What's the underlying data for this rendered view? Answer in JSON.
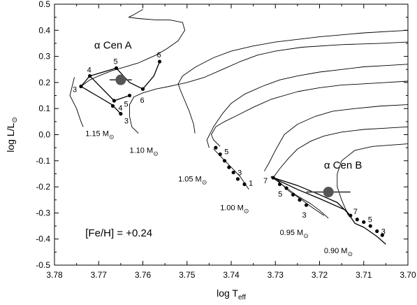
{
  "chart_data": {
    "type": "line",
    "xlabel": "log T",
    "xlabel_sub": "eff",
    "ylabel": "log L/L",
    "ylabel_sub": "⊙",
    "xlim": [
      3.78,
      3.7
    ],
    "ylim": [
      -0.5,
      0.5
    ],
    "x_reversed": true,
    "grid": false,
    "x_ticks": [
      "3.78",
      "3.77",
      "3.76",
      "3.75",
      "3.74",
      "3.73",
      "3.72",
      "3.71",
      "3.70"
    ],
    "y_ticks": [
      "0.5",
      "0.4",
      "0.3",
      "0.2",
      "0.1",
      "0.0",
      "-0.1",
      "-0.2",
      "-0.3",
      "-0.4",
      "-0.5"
    ],
    "annotations": [
      {
        "text": "α Cen A",
        "x": 3.771,
        "y": 0.33
      },
      {
        "text": "α Cen B",
        "x": 3.719,
        "y": -0.13
      },
      {
        "text": "[Fe/H] = +0.24",
        "x": 3.773,
        "y": -0.39
      }
    ],
    "track_labels": [
      {
        "mass": "1.15 M",
        "x": 3.773,
        "y": -0.005
      },
      {
        "mass": "1.10 M",
        "x": 3.763,
        "y": -0.07
      },
      {
        "mass": "1.05 M",
        "x": 3.752,
        "y": -0.18
      },
      {
        "mass": "1.00 M",
        "x": 3.7425,
        "y": -0.29
      },
      {
        "mass": "0.95 M",
        "x": 3.729,
        "y": -0.385
      },
      {
        "mass": "0.90 M",
        "x": 3.719,
        "y": -0.455
      }
    ],
    "mass_sun_symbol": "⊙",
    "series": [
      {
        "points": [
          [
            3.7755,
            0.22
          ],
          [
            3.7765,
            0.15
          ],
          [
            3.775,
            0.1
          ],
          [
            3.774,
            0.05
          ],
          [
            3.7735,
            0.03
          ]
        ]
      },
      {
        "points": [
          [
            3.774,
            0.185
          ],
          [
            3.772,
            0.21
          ],
          [
            3.77,
            0.225
          ],
          [
            3.767,
            0.245
          ],
          [
            3.765,
            0.255
          ],
          [
            3.763,
            0.265
          ],
          [
            3.761,
            0.275
          ],
          [
            3.759,
            0.29
          ],
          [
            3.757,
            0.305
          ],
          [
            3.7545,
            0.33
          ],
          [
            3.752,
            0.36
          ],
          [
            3.7505,
            0.4
          ],
          [
            3.751,
            0.43
          ],
          [
            3.754,
            0.44
          ],
          [
            3.757,
            0.44
          ],
          [
            3.761,
            0.445
          ],
          [
            3.7632,
            0.45
          ],
          [
            3.762,
            0.46
          ],
          [
            3.76,
            0.48
          ]
        ]
      },
      {
        "points": [
          [
            3.761,
            0.005
          ],
          [
            3.7625,
            0.03
          ],
          [
            3.763,
            0.07
          ],
          [
            3.763,
            0.115
          ],
          [
            3.762,
            0.145
          ],
          [
            3.76,
            0.16
          ],
          [
            3.757,
            0.175
          ],
          [
            3.754,
            0.185
          ],
          [
            3.75,
            0.2
          ],
          [
            3.746,
            0.22
          ],
          [
            3.742,
            0.25
          ],
          [
            3.738,
            0.28
          ],
          [
            3.734,
            0.305
          ],
          [
            3.73,
            0.32
          ],
          [
            3.724,
            0.335
          ],
          [
            3.715,
            0.345
          ],
          [
            3.706,
            0.35
          ],
          [
            3.7,
            0.355
          ]
        ]
      },
      {
        "points": [
          [
            3.7482,
            0.005
          ],
          [
            3.7485,
            0.04
          ],
          [
            3.7495,
            0.09
          ],
          [
            3.7505,
            0.13
          ],
          [
            3.7515,
            0.17
          ],
          [
            3.752,
            0.195
          ],
          [
            3.751,
            0.225
          ],
          [
            3.748,
            0.26
          ],
          [
            3.744,
            0.295
          ],
          [
            3.74,
            0.32
          ],
          [
            3.735,
            0.34
          ],
          [
            3.73,
            0.355
          ],
          [
            3.72,
            0.375
          ],
          [
            3.71,
            0.39
          ],
          [
            3.7,
            0.4
          ]
        ]
      },
      {
        "points": [
          [
            3.745,
            -0.05
          ],
          [
            3.7455,
            -0.02
          ],
          [
            3.744,
            0.03
          ],
          [
            3.742,
            0.08
          ],
          [
            3.74,
            0.12
          ],
          [
            3.737,
            0.155
          ],
          [
            3.733,
            0.185
          ],
          [
            3.729,
            0.21
          ],
          [
            3.725,
            0.225
          ],
          [
            3.72,
            0.24
          ],
          [
            3.715,
            0.25
          ],
          [
            3.71,
            0.26
          ],
          [
            3.705,
            0.265
          ],
          [
            3.7,
            0.27
          ]
        ]
      },
      {
        "points": [
          [
            3.7425,
            -0.045
          ],
          [
            3.744,
            -0.02
          ],
          [
            3.7445,
            0.0
          ],
          [
            3.7435,
            0.03
          ],
          [
            3.7415,
            0.05
          ],
          [
            3.7385,
            0.075
          ],
          [
            3.735,
            0.105
          ],
          [
            3.731,
            0.135
          ],
          [
            3.725,
            0.165
          ],
          [
            3.72,
            0.18
          ],
          [
            3.715,
            0.19
          ],
          [
            3.71,
            0.195
          ],
          [
            3.705,
            0.2
          ],
          [
            3.7,
            0.205
          ]
        ]
      },
      {
        "points": [
          [
            3.744,
            -0.055
          ],
          [
            3.742,
            -0.09
          ],
          [
            3.74,
            -0.125
          ],
          [
            3.738,
            -0.16
          ],
          [
            3.736,
            -0.21
          ]
        ]
      },
      {
        "points": [
          [
            3.7325,
            -0.14
          ],
          [
            3.7315,
            -0.11
          ],
          [
            3.73,
            -0.06
          ],
          [
            3.728,
            0.0
          ],
          [
            3.725,
            0.04
          ],
          [
            3.721,
            0.07
          ],
          [
            3.717,
            0.09
          ],
          [
            3.712,
            0.1
          ],
          [
            3.706,
            0.11
          ],
          [
            3.7,
            0.115
          ]
        ]
      },
      {
        "points": [
          [
            3.7305,
            -0.165
          ],
          [
            3.729,
            -0.13
          ],
          [
            3.727,
            -0.09
          ],
          [
            3.725,
            -0.055
          ],
          [
            3.722,
            -0.025
          ],
          [
            3.719,
            -0.005
          ],
          [
            3.715,
            0.01
          ],
          [
            3.71,
            0.02
          ],
          [
            3.705,
            0.025
          ],
          [
            3.7,
            0.03
          ]
        ]
      },
      {
        "points": [
          [
            3.731,
            -0.16
          ],
          [
            3.729,
            -0.185
          ],
          [
            3.727,
            -0.21
          ],
          [
            3.725,
            -0.235
          ],
          [
            3.722,
            -0.265
          ],
          [
            3.72,
            -0.29
          ],
          [
            3.718,
            -0.32
          ]
        ]
      },
      {
        "points": [
          [
            3.7135,
            -0.31
          ],
          [
            3.715,
            -0.25
          ],
          [
            3.716,
            -0.2
          ],
          [
            3.716,
            -0.15
          ],
          [
            3.715,
            -0.1
          ],
          [
            3.712,
            -0.06
          ],
          [
            3.708,
            -0.045
          ],
          [
            3.704,
            -0.04
          ],
          [
            3.7,
            -0.035
          ]
        ]
      },
      {
        "points": [
          [
            3.7295,
            -0.175
          ],
          [
            3.727,
            -0.215
          ],
          [
            3.724,
            -0.25
          ],
          [
            3.722,
            -0.275
          ],
          [
            3.719,
            -0.31
          ]
        ]
      },
      {
        "points": [
          [
            3.731,
            -0.162
          ],
          [
            3.725,
            -0.21
          ],
          [
            3.72,
            -0.245
          ],
          [
            3.714,
            -0.29
          ],
          [
            3.712,
            -0.34
          ],
          [
            3.71,
            -0.355
          ],
          [
            3.707,
            -0.39
          ],
          [
            3.705,
            -0.42
          ]
        ]
      },
      {
        "points": [
          [
            3.731,
            -0.162
          ],
          [
            3.725,
            -0.195
          ],
          [
            3.72,
            -0.23
          ],
          [
            3.716,
            -0.26
          ],
          [
            3.713,
            -0.31
          ]
        ]
      },
      {
        "points": [
          [
            3.774,
            0.185
          ],
          [
            3.772,
            0.225
          ],
          [
            3.768,
            0.245
          ],
          [
            3.766,
            0.255
          ],
          [
            3.763,
            0.2
          ],
          [
            3.76,
            0.175
          ],
          [
            3.7575,
            0.225
          ],
          [
            3.7562,
            0.28
          ]
        ]
      },
      {
        "points": [
          [
            3.774,
            0.185
          ],
          [
            3.7705,
            0.15
          ],
          [
            3.767,
            0.115
          ],
          [
            3.765,
            0.08
          ]
        ]
      },
      {
        "points": [
          [
            3.772,
            0.225
          ],
          [
            3.7665,
            0.13
          ],
          [
            3.763,
            0.15
          ]
        ]
      }
    ],
    "isochrone_points": [
      {
        "x": 3.774,
        "y": 0.185,
        "label": "3",
        "ldx": -12,
        "ldy": 4
      },
      {
        "x": 3.772,
        "y": 0.225,
        "label": "4",
        "ldx": -4,
        "ldy": -9
      },
      {
        "x": 3.766,
        "y": 0.255,
        "label": "5",
        "ldx": -4,
        "ldy": -10
      },
      {
        "x": 3.7562,
        "y": 0.28,
        "label": "6",
        "ldx": -4,
        "ldy": -10
      },
      {
        "x": 3.7665,
        "y": 0.13,
        "label": "4",
        "ldx": 6,
        "ldy": 10
      },
      {
        "x": 3.763,
        "y": 0.15,
        "label": "5",
        "ldx": -8,
        "ldy": 12
      },
      {
        "x": 3.76,
        "y": 0.175,
        "label": "6",
        "ldx": -4,
        "ldy": 16
      },
      {
        "x": 3.765,
        "y": 0.08,
        "label": "3",
        "ldx": 5,
        "ldy": 10
      },
      {
        "x": 3.7668,
        "y": 0.11,
        "label": "",
        "ldx": 0,
        "ldy": 0
      },
      {
        "x": 3.7435,
        "y": -0.05,
        "label": "",
        "ldx": 0,
        "ldy": 0
      },
      {
        "x": 3.7425,
        "y": -0.075,
        "label": "5",
        "ldx": 6,
        "ldy": -4
      },
      {
        "x": 3.7415,
        "y": -0.1,
        "label": "",
        "ldx": 0,
        "ldy": 0
      },
      {
        "x": 3.7405,
        "y": -0.125,
        "label": "",
        "ldx": 0,
        "ldy": 0
      },
      {
        "x": 3.7395,
        "y": -0.145,
        "label": "3",
        "ldx": 6,
        "ldy": 0
      },
      {
        "x": 3.7385,
        "y": -0.17,
        "label": "",
        "ldx": 0,
        "ldy": 0
      },
      {
        "x": 3.737,
        "y": -0.19,
        "label": "1",
        "ldx": 6,
        "ldy": -2
      },
      {
        "x": 3.7305,
        "y": -0.165,
        "label": "7",
        "ldx": -14,
        "ldy": 4
      },
      {
        "x": 3.729,
        "y": -0.19,
        "label": "",
        "ldx": 0,
        "ldy": 0
      },
      {
        "x": 3.7275,
        "y": -0.205,
        "label": "5",
        "ldx": -12,
        "ldy": 8
      },
      {
        "x": 3.726,
        "y": -0.23,
        "label": "",
        "ldx": 0,
        "ldy": 0
      },
      {
        "x": 3.7245,
        "y": -0.25,
        "label": "",
        "ldx": 0,
        "ldy": 0
      },
      {
        "x": 3.723,
        "y": -0.27,
        "label": "3",
        "ldx": -6,
        "ldy": 14
      },
      {
        "x": 3.713,
        "y": -0.31,
        "label": "7",
        "ldx": 4,
        "ldy": -6
      },
      {
        "x": 3.71,
        "y": -0.335,
        "label": "5",
        "ldx": 6,
        "ldy": -4
      },
      {
        "x": 3.7085,
        "y": -0.35,
        "label": "",
        "ldx": 0,
        "ldy": 0
      },
      {
        "x": 3.707,
        "y": -0.37,
        "label": "3",
        "ldx": 6,
        "ldy": 0
      },
      {
        "x": 3.7115,
        "y": -0.325,
        "label": "",
        "ldx": 0,
        "ldy": 0
      },
      {
        "x": 3.7058,
        "y": -0.385,
        "label": "",
        "ldx": 0,
        "ldy": 0
      }
    ],
    "stars": [
      {
        "name": "α Cen A",
        "x": 3.765,
        "y": 0.21,
        "xerr": 0.0025
      },
      {
        "name": "α Cen B",
        "x": 3.718,
        "y": -0.22,
        "xerr": 0.005
      }
    ],
    "colors": {
      "lines": "#000000",
      "star": "#555555"
    }
  }
}
